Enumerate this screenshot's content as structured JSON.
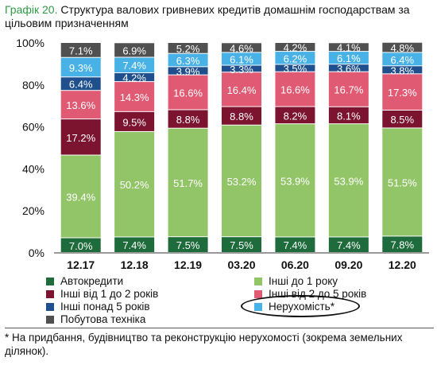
{
  "header": {
    "number": "Графік 20.",
    "title": "Структура валових гривневих кредитів домашнім господарствам за цільовим призначенням"
  },
  "colors": {
    "auto": "#1e6b3b",
    "other_1y": "#92c468",
    "other_1_2y": "#7c1430",
    "other_2_5y": "#e05a73",
    "other_5y": "#1f4f8c",
    "realestate": "#48b2e6",
    "appliances": "#505050"
  },
  "chart_data": {
    "type": "bar",
    "stacked": true,
    "title": "",
    "xlabel": "",
    "ylabel": "",
    "ylim": [
      0,
      100
    ],
    "yticks": [
      "0%",
      "20%",
      "40%",
      "60%",
      "80%",
      "100%"
    ],
    "categories": [
      "12.17",
      "12.18",
      "12.19",
      "03.20",
      "06.20",
      "09.20",
      "12.20"
    ],
    "series": [
      {
        "key": "auto",
        "name": "Автокредити",
        "values": [
          7.0,
          7.4,
          7.5,
          7.5,
          7.4,
          7.4,
          7.8
        ]
      },
      {
        "key": "other_1y",
        "name": "Інші до 1 року",
        "values": [
          39.4,
          50.2,
          51.7,
          53.2,
          53.9,
          53.9,
          51.5
        ]
      },
      {
        "key": "other_1_2y",
        "name": "Інші від 1 до 2 років",
        "values": [
          17.2,
          9.5,
          8.8,
          8.8,
          8.2,
          8.1,
          8.5
        ]
      },
      {
        "key": "other_2_5y",
        "name": "Інші від 2 до 5 років",
        "values": [
          13.6,
          14.3,
          16.6,
          16.4,
          16.6,
          16.7,
          17.3
        ]
      },
      {
        "key": "other_5y",
        "name": "Інші понад 5 років",
        "values": [
          6.4,
          4.2,
          3.9,
          3.3,
          3.5,
          3.6,
          3.8
        ]
      },
      {
        "key": "realestate",
        "name": "Нерухомість*",
        "values": [
          9.3,
          7.4,
          6.3,
          6.1,
          6.2,
          6.1,
          6.4
        ]
      },
      {
        "key": "appliances",
        "name": "Побутова техніка",
        "values": [
          7.1,
          6.9,
          5.2,
          4.6,
          4.2,
          4.1,
          4.8
        ]
      }
    ],
    "legend": "bottom",
    "grid": false
  },
  "footnote": "* На придбання, будівництво та реконструкцію нерухомості (зокрема земельних ділянок)."
}
